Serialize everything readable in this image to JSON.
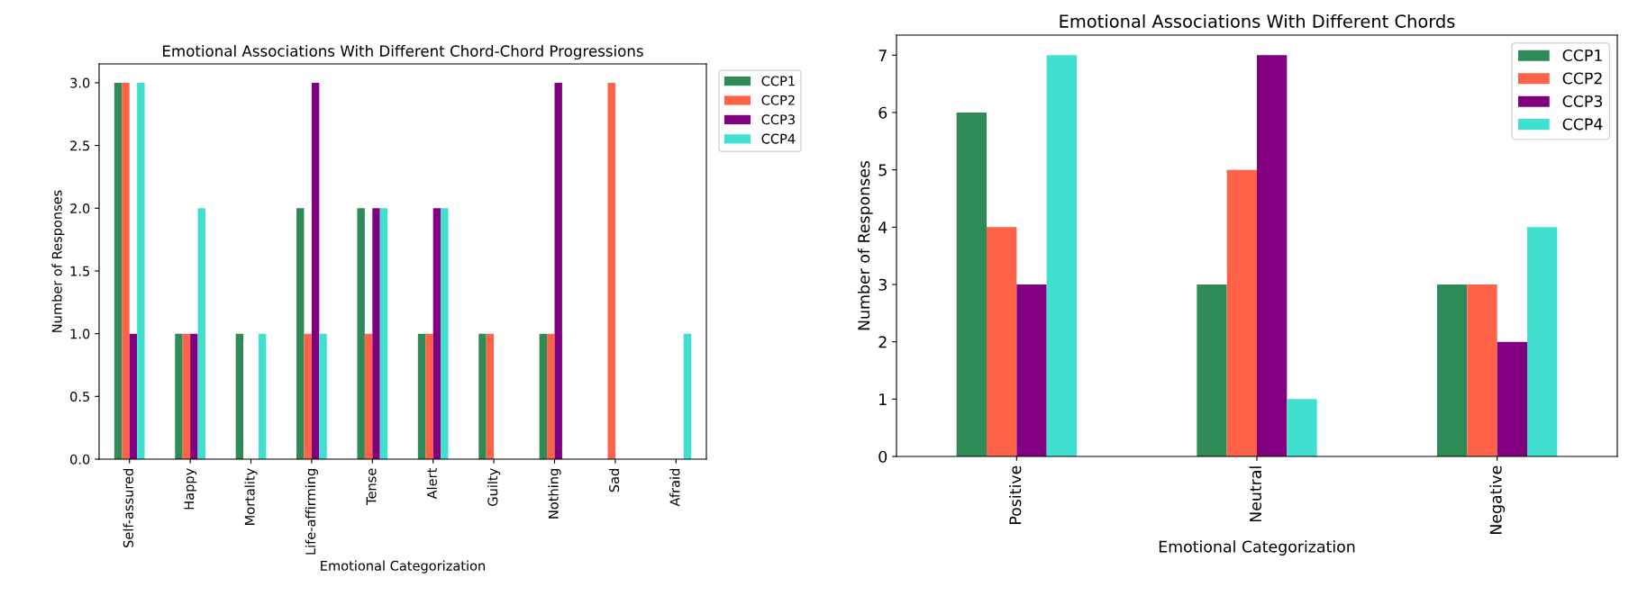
{
  "chart_data": [
    {
      "type": "bar",
      "title": "Emotional Associations With Different Chord-Chord Progressions",
      "xlabel": "Emotional Categorization",
      "ylabel": "Number of Responses",
      "categories": [
        "Self-assured",
        "Happy",
        "Mortality",
        "Life-affirming",
        "Tense",
        "Alert",
        "Guilty",
        "Nothing",
        "Sad",
        "Afraid"
      ],
      "series": [
        {
          "name": "CCP1",
          "color": "#2e8b57",
          "values": [
            3,
            1,
            1,
            2,
            2,
            1,
            1,
            1,
            0,
            0
          ]
        },
        {
          "name": "CCP2",
          "color": "#ff6347",
          "values": [
            3,
            1,
            0,
            1,
            1,
            1,
            1,
            1,
            3,
            0
          ]
        },
        {
          "name": "CCP3",
          "color": "#800080",
          "values": [
            1,
            1,
            0,
            3,
            2,
            2,
            0,
            3,
            0,
            0
          ]
        },
        {
          "name": "CCP4",
          "color": "#40e0d0",
          "values": [
            3,
            2,
            1,
            1,
            2,
            2,
            0,
            0,
            0,
            1
          ]
        }
      ],
      "ylim": [
        0,
        3.15
      ],
      "yticks": [
        {
          "value": 0,
          "label": "0.0"
        },
        {
          "value": 0.5,
          "label": "0.5"
        },
        {
          "value": 1,
          "label": "1.0"
        },
        {
          "value": 1.5,
          "label": "1.5"
        },
        {
          "value": 2,
          "label": "2.0"
        },
        {
          "value": 2.5,
          "label": "2.5"
        },
        {
          "value": 3,
          "label": "3.0"
        }
      ],
      "legend": "right",
      "grid": false
    },
    {
      "type": "bar",
      "title": "Emotional Associations With Different Chords",
      "xlabel": "Emotional Categorization",
      "ylabel": "Number of Responses",
      "categories": [
        "Positive",
        "Neutral",
        "Negative"
      ],
      "series": [
        {
          "name": "CCP1",
          "color": "#2e8b57",
          "values": [
            6,
            3,
            3
          ]
        },
        {
          "name": "CCP2",
          "color": "#ff6347",
          "values": [
            4,
            5,
            3
          ]
        },
        {
          "name": "CCP3",
          "color": "#800080",
          "values": [
            3,
            7,
            2
          ]
        },
        {
          "name": "CCP4",
          "color": "#40e0d0",
          "values": [
            7,
            1,
            4
          ]
        }
      ],
      "ylim": [
        0,
        7.35
      ],
      "yticks": [
        0,
        1,
        2,
        3,
        4,
        5,
        6,
        7
      ],
      "legend": "top right",
      "grid": false
    }
  ]
}
